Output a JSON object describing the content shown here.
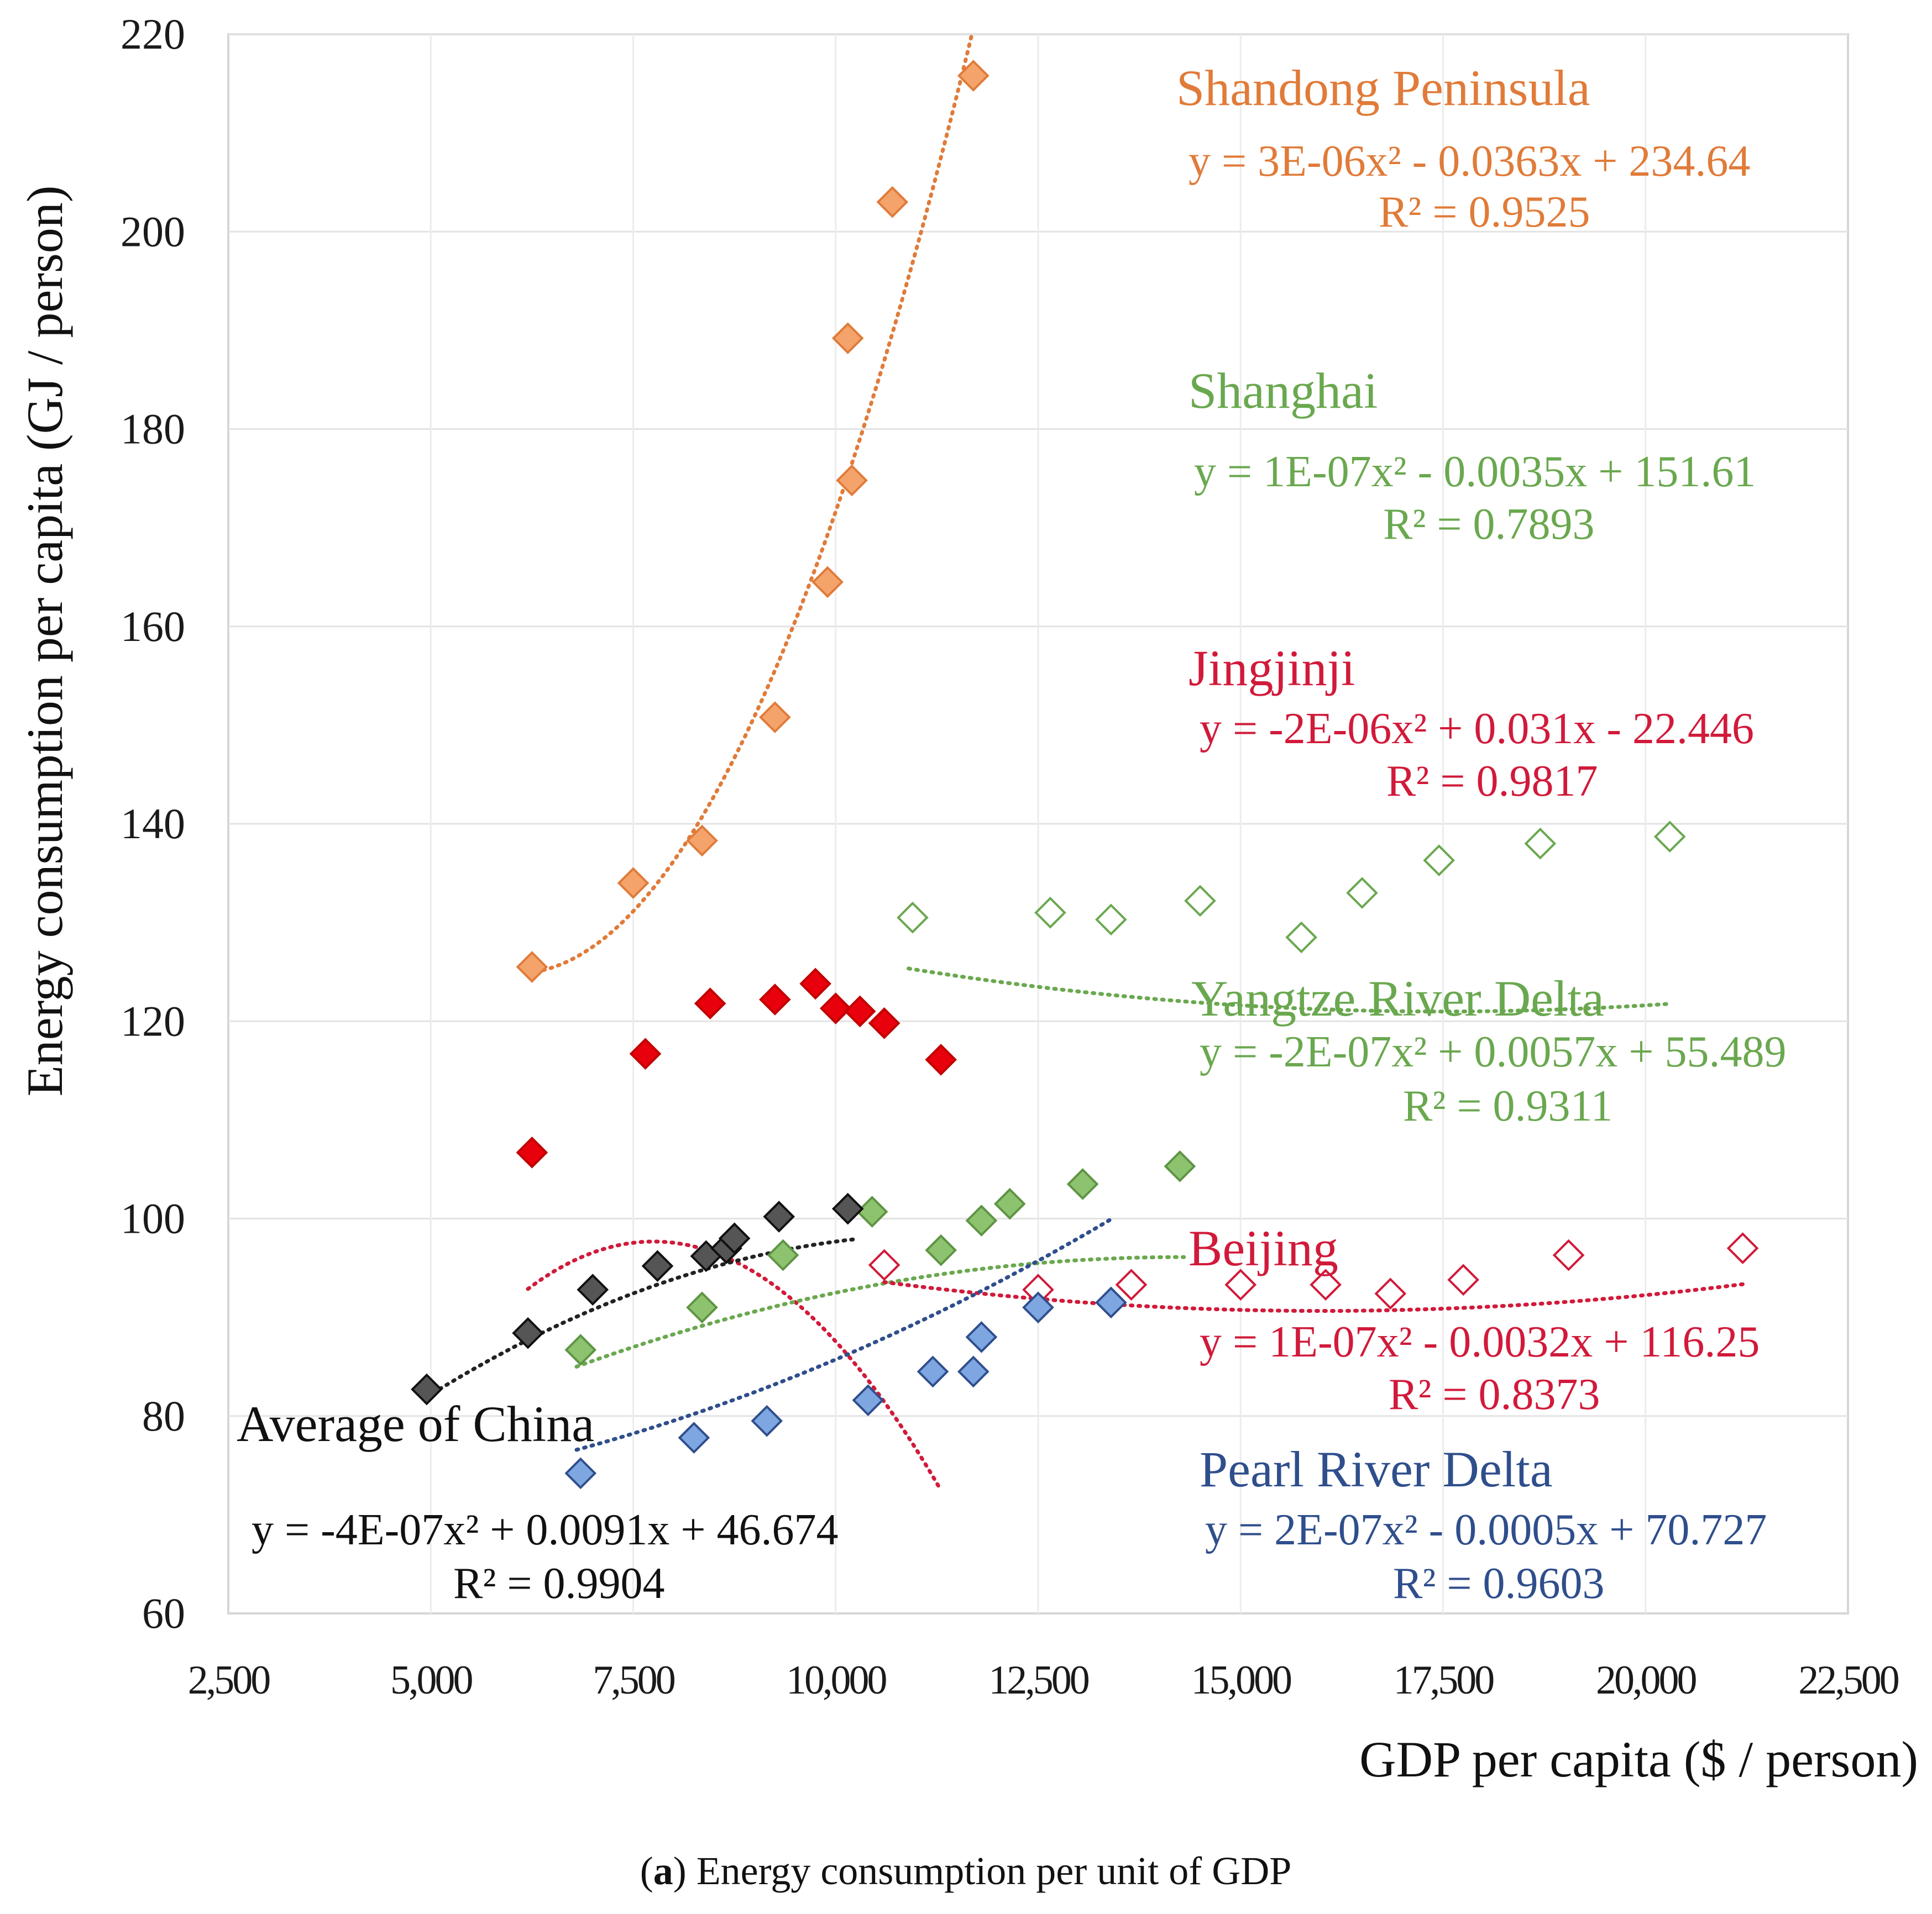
{
  "chart_data": {
    "type": "scatter",
    "xlabel": "GDP per capita  ($ / person)",
    "ylabel": "Energy consumption per capita (GJ / person)",
    "xlim": [
      2500,
      22500
    ],
    "ylim": [
      60,
      220
    ],
    "xticks": [
      "2,500",
      "5,000",
      "7,500",
      "10,000",
      "12,500",
      "15,000",
      "17,500",
      "20,000",
      "22,500"
    ],
    "yticks": [
      "60",
      "80",
      "100",
      "120",
      "140",
      "160",
      "180",
      "200",
      "220"
    ],
    "grid": true,
    "series": [
      {
        "name": "Shandong Peninsula",
        "color": "#F4A36B",
        "edge": "#E07B39",
        "trend_color": "#E07B39",
        "label_color": "#E07B39",
        "filled": true,
        "fit": {
          "a": 3e-06,
          "b": -0.0363,
          "c": 234.64
        },
        "fit_range": [
          6200,
          11700
        ],
        "equation": "y = 3E-06x² - 0.0363x + 234.64",
        "r2": "R² = 0.9525",
        "points": [
          [
            6250,
            125.5
          ],
          [
            7500,
            134
          ],
          [
            8350,
            138.3
          ],
          [
            9250,
            150.8
          ],
          [
            9900,
            164.5
          ],
          [
            10200,
            174.8
          ],
          [
            10150,
            189.2
          ],
          [
            10700,
            203
          ],
          [
            11700,
            215.8
          ]
        ]
      },
      {
        "name": "Shanghai",
        "color": "#FFFFFF",
        "edge": "#6AA84F",
        "trend_color": "#6AA84F",
        "label_color": "#6AA84F",
        "filled": false,
        "fit": {
          "a": 1e-07,
          "b": -0.0035,
          "c": 151.61
        },
        "fit_range": [
          10900,
          20300
        ],
        "equation": "y = 1E-07x² - 0.0035x + 151.61",
        "r2": "R² = 0.7893",
        "points": [
          [
            10950,
            130.5
          ],
          [
            12650,
            131
          ],
          [
            13400,
            130.3
          ],
          [
            14500,
            132.2
          ],
          [
            15750,
            128.5
          ],
          [
            16500,
            133
          ],
          [
            17450,
            136.3
          ],
          [
            18700,
            138
          ],
          [
            20300,
            138.7
          ]
        ]
      },
      {
        "name": "Jingjinji",
        "color": "#E8000D",
        "edge": "#C00000",
        "trend_color": "#D11A3A",
        "label_color": "#D11A3A",
        "filled": true,
        "fit": {
          "a": -2e-06,
          "b": 0.031,
          "c": -22.446
        },
        "fit_range": [
          6200,
          11300
        ],
        "equation": "y = -2E-06x² + 0.031x - 22.446",
        "r2": "R² = 0.9817",
        "points": [
          [
            6250,
            106.7
          ],
          [
            7650,
            116.7
          ],
          [
            8450,
            121.8
          ],
          [
            9250,
            122.2
          ],
          [
            9750,
            123.8
          ],
          [
            10000,
            121.3
          ],
          [
            10300,
            121
          ],
          [
            10600,
            119.8
          ],
          [
            11300,
            116.1
          ]
        ]
      },
      {
        "name": "Yangtze River Delta",
        "color": "#8DC26F",
        "edge": "#5E9444",
        "trend_color": "#6AA84F",
        "label_color": "#6AA84F",
        "filled": true,
        "fit": {
          "a": -2e-07,
          "b": 0.0057,
          "c": 55.489
        },
        "fit_range": [
          6800,
          14300
        ],
        "equation": "y = -2E-07x² + 0.0057x + 55.489",
        "r2": "R² = 0.9311",
        "points": [
          [
            6850,
            86.7
          ],
          [
            8350,
            91
          ],
          [
            9350,
            96.3
          ],
          [
            10450,
            100.7
          ],
          [
            11300,
            96.8
          ],
          [
            11800,
            99.8
          ],
          [
            12150,
            101.5
          ],
          [
            13050,
            103.5
          ],
          [
            14250,
            105.3
          ]
        ]
      },
      {
        "name": "Beijing",
        "color": "#FFFFFF",
        "edge": "#D11A3A",
        "trend_color": "#D11A3A",
        "label_color": "#D11A3A",
        "filled": false,
        "fit": {
          "a": 1e-07,
          "b": -0.0032,
          "c": 116.25
        },
        "fit_range": [
          10600,
          21200
        ],
        "equation": "y = 1E-07x² - 0.0032x + 116.25",
        "r2": "R² = 0.8373",
        "points": [
          [
            10600,
            95.3
          ],
          [
            12500,
            92.8
          ],
          [
            13650,
            93.3
          ],
          [
            15000,
            93.3
          ],
          [
            16050,
            93.3
          ],
          [
            16850,
            92.4
          ],
          [
            17750,
            93.8
          ],
          [
            19050,
            96.3
          ],
          [
            21200,
            97
          ]
        ]
      },
      {
        "name": "Pearl River Delta",
        "color": "#7EA6E0",
        "edge": "#2F4E8C",
        "trend_color": "#2F4E8C",
        "label_color": "#2F4E8C",
        "filled": true,
        "fit": {
          "a": 2e-07,
          "b": -0.0005,
          "c": 70.727
        },
        "fit_range": [
          6800,
          13400
        ],
        "equation": "y = 2E-07x² - 0.0005x + 70.727",
        "r2": "R² = 0.9603",
        "points": [
          [
            6850,
            74.2
          ],
          [
            8250,
            77.8
          ],
          [
            9150,
            79.5
          ],
          [
            10400,
            81.6
          ],
          [
            11200,
            84.5
          ],
          [
            11700,
            84.5
          ],
          [
            11800,
            88
          ],
          [
            12500,
            91
          ],
          [
            13400,
            91.5
          ]
        ]
      },
      {
        "name": "Average of China",
        "color": "#555555",
        "edge": "#111111",
        "trend_color": "#222222",
        "label_color": "#111111",
        "filled": true,
        "fit": {
          "a": -4e-07,
          "b": 0.0091,
          "c": 46.674
        },
        "fit_range": [
          4950,
          10250
        ],
        "equation": "y = -4E-07x² + 0.0091x + 46.674",
        "r2": "R² = 0.9904",
        "points": [
          [
            4950,
            82.7
          ],
          [
            6200,
            88.4
          ],
          [
            7000,
            92.8
          ],
          [
            7800,
            95.2
          ],
          [
            8400,
            96.2
          ],
          [
            8650,
            97
          ],
          [
            8750,
            98
          ],
          [
            9300,
            100.2
          ],
          [
            10150,
            101
          ]
        ]
      }
    ]
  },
  "caption": {
    "label": "a",
    "text": " Energy consumption per unit of GDP"
  }
}
